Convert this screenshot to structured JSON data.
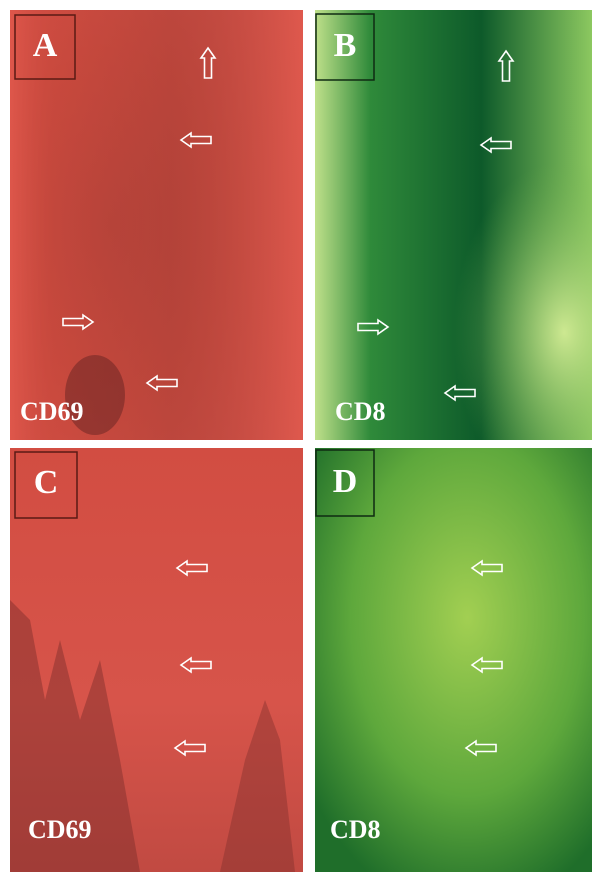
{
  "panels": [
    {
      "letter": "A",
      "label": "CD69"
    },
    {
      "letter": "B",
      "label": "CD8"
    },
    {
      "letter": "C",
      "label": "CD69"
    },
    {
      "letter": "D",
      "label": "CD8"
    }
  ]
}
